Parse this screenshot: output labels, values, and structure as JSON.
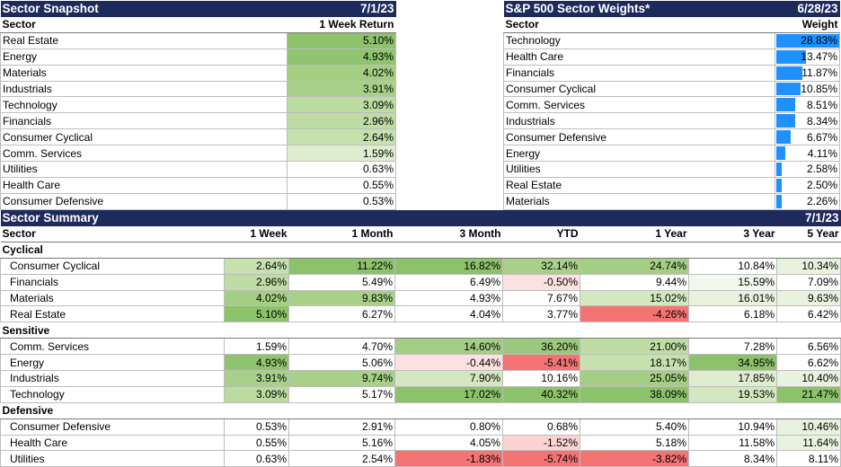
{
  "snapshot": {
    "title": "Sector Snapshot",
    "date": "7/1/23",
    "col_sector": "Sector",
    "col_return": "1 Week Return",
    "rows": [
      {
        "sector": "Real Estate",
        "value": "5.10%",
        "color": "#8cc26a"
      },
      {
        "sector": "Energy",
        "value": "4.93%",
        "color": "#91c46e"
      },
      {
        "sector": "Materials",
        "value": "4.02%",
        "color": "#a5ce85"
      },
      {
        "sector": "Industrials",
        "value": "3.91%",
        "color": "#a8d088"
      },
      {
        "sector": "Technology",
        "value": "3.09%",
        "color": "#bbdb9f"
      },
      {
        "sector": "Financials",
        "value": "2.96%",
        "color": "#bedca3"
      },
      {
        "sector": "Consumer Cyclical",
        "value": "2.64%",
        "color": "#c6e1ad"
      },
      {
        "sector": "Comm. Services",
        "value": "1.59%",
        "color": "#deedd0"
      },
      {
        "sector": "Utilities",
        "value": "0.63%",
        "color": "#ffffff"
      },
      {
        "sector": "Health Care",
        "value": "0.55%",
        "color": "#ffffff"
      },
      {
        "sector": "Consumer Defensive",
        "value": "0.53%",
        "color": "#ffffff"
      }
    ]
  },
  "weights": {
    "title": "S&P 500 Sector Weights*",
    "date": "6/28/23",
    "col_sector": "Sector",
    "col_weight": "Weight",
    "bar_color": "#1e90ff",
    "rows": [
      {
        "sector": "Technology",
        "value": "28.83%",
        "weight": 28.83
      },
      {
        "sector": "Health Care",
        "value": "13.47%",
        "weight": 13.47
      },
      {
        "sector": "Financials",
        "value": "11.87%",
        "weight": 11.87
      },
      {
        "sector": "Consumer Cyclical",
        "value": "10.85%",
        "weight": 10.85
      },
      {
        "sector": "Comm. Services",
        "value": "8.51%",
        "weight": 8.51
      },
      {
        "sector": "Industrials",
        "value": "8.34%",
        "weight": 8.34
      },
      {
        "sector": "Consumer Defensive",
        "value": "6.67%",
        "weight": 6.67
      },
      {
        "sector": "Energy",
        "value": "4.11%",
        "weight": 4.11
      },
      {
        "sector": "Utilities",
        "value": "2.58%",
        "weight": 2.58
      },
      {
        "sector": "Real Estate",
        "value": "2.50%",
        "weight": 2.5
      },
      {
        "sector": "Materials",
        "value": "2.26%",
        "weight": 2.26
      }
    ]
  },
  "summary": {
    "title": "Sector Summary",
    "date": "7/1/23",
    "columns": [
      "Sector",
      "1 Week",
      "1 Month",
      "3 Month",
      "YTD",
      "1 Year",
      "3 Year",
      "5 Year"
    ],
    "groups": [
      {
        "name": "Cyclical",
        "rows": [
          {
            "sector": "Consumer Cyclical",
            "cells": [
              {
                "v": "2.64%",
                "c": "#c6e1ad"
              },
              {
                "v": "11.22%",
                "c": "#8cc26a"
              },
              {
                "v": "16.82%",
                "c": "#8cc26a"
              },
              {
                "v": "32.14%",
                "c": "#a8d088"
              },
              {
                "v": "24.74%",
                "c": "#a5ce85"
              },
              {
                "v": "10.84%",
                "c": "#ffffff"
              },
              {
                "v": "10.34%",
                "c": "#e8f2df"
              }
            ]
          },
          {
            "sector": "Financials",
            "cells": [
              {
                "v": "2.96%",
                "c": "#bedca3"
              },
              {
                "v": "5.49%",
                "c": "#ffffff"
              },
              {
                "v": "6.49%",
                "c": "#ffffff"
              },
              {
                "v": "-0.50%",
                "c": "#fde0e0"
              },
              {
                "v": "9.44%",
                "c": "#ffffff"
              },
              {
                "v": "15.59%",
                "c": "#f3f8ee"
              },
              {
                "v": "7.09%",
                "c": "#ffffff"
              }
            ]
          },
          {
            "sector": "Materials",
            "cells": [
              {
                "v": "4.02%",
                "c": "#a5ce85"
              },
              {
                "v": "9.83%",
                "c": "#a8d088"
              },
              {
                "v": "4.93%",
                "c": "#ffffff"
              },
              {
                "v": "7.67%",
                "c": "#ffffff"
              },
              {
                "v": "15.02%",
                "c": "#d3e8c0"
              },
              {
                "v": "16.01%",
                "c": "#e8f2df"
              },
              {
                "v": "9.63%",
                "c": "#e8f2df"
              }
            ]
          },
          {
            "sector": "Real Estate",
            "cells": [
              {
                "v": "5.10%",
                "c": "#8cc26a"
              },
              {
                "v": "6.27%",
                "c": "#ffffff"
              },
              {
                "v": "4.04%",
                "c": "#ffffff"
              },
              {
                "v": "3.77%",
                "c": "#ffffff"
              },
              {
                "v": "-4.26%",
                "c": "#f47474"
              },
              {
                "v": "6.18%",
                "c": "#ffffff"
              },
              {
                "v": "6.42%",
                "c": "#ffffff"
              }
            ]
          }
        ]
      },
      {
        "name": "Sensitive",
        "rows": [
          {
            "sector": "Comm. Services",
            "cells": [
              {
                "v": "1.59%",
                "c": "#ffffff"
              },
              {
                "v": "4.70%",
                "c": "#ffffff"
              },
              {
                "v": "14.60%",
                "c": "#a5ce85"
              },
              {
                "v": "36.20%",
                "c": "#9bc97b"
              },
              {
                "v": "21.00%",
                "c": "#bedca3"
              },
              {
                "v": "7.28%",
                "c": "#ffffff"
              },
              {
                "v": "6.56%",
                "c": "#ffffff"
              }
            ]
          },
          {
            "sector": "Energy",
            "cells": [
              {
                "v": "4.93%",
                "c": "#91c46e"
              },
              {
                "v": "5.06%",
                "c": "#ffffff"
              },
              {
                "v": "-0.44%",
                "c": "#fde0e0"
              },
              {
                "v": "-5.41%",
                "c": "#f47474"
              },
              {
                "v": "18.17%",
                "c": "#c6e1ad"
              },
              {
                "v": "34.95%",
                "c": "#8cc26a"
              },
              {
                "v": "6.62%",
                "c": "#ffffff"
              }
            ]
          },
          {
            "sector": "Industrials",
            "cells": [
              {
                "v": "3.91%",
                "c": "#a8d088"
              },
              {
                "v": "9.74%",
                "c": "#a8d088"
              },
              {
                "v": "7.90%",
                "c": "#d3e8c0"
              },
              {
                "v": "10.16%",
                "c": "#ffffff"
              },
              {
                "v": "25.05%",
                "c": "#a5ce85"
              },
              {
                "v": "17.85%",
                "c": "#deedd0"
              },
              {
                "v": "10.40%",
                "c": "#e8f2df"
              }
            ]
          },
          {
            "sector": "Technology",
            "cells": [
              {
                "v": "3.09%",
                "c": "#bbdb9f"
              },
              {
                "v": "5.17%",
                "c": "#ffffff"
              },
              {
                "v": "17.02%",
                "c": "#8cc26a"
              },
              {
                "v": "40.32%",
                "c": "#8cc26a"
              },
              {
                "v": "38.09%",
                "c": "#8cc26a"
              },
              {
                "v": "19.53%",
                "c": "#d3e8c0"
              },
              {
                "v": "21.47%",
                "c": "#8cc26a"
              }
            ]
          }
        ]
      },
      {
        "name": "Defensive",
        "rows": [
          {
            "sector": "Consumer Defensive",
            "cells": [
              {
                "v": "0.53%",
                "c": "#ffffff"
              },
              {
                "v": "2.91%",
                "c": "#ffffff"
              },
              {
                "v": "0.80%",
                "c": "#ffffff"
              },
              {
                "v": "0.68%",
                "c": "#ffffff"
              },
              {
                "v": "5.40%",
                "c": "#ffffff"
              },
              {
                "v": "10.94%",
                "c": "#ffffff"
              },
              {
                "v": "10.46%",
                "c": "#e8f2df"
              }
            ]
          },
          {
            "sector": "Health Care",
            "cells": [
              {
                "v": "0.55%",
                "c": "#ffffff"
              },
              {
                "v": "5.16%",
                "c": "#ffffff"
              },
              {
                "v": "4.05%",
                "c": "#ffffff"
              },
              {
                "v": "-1.52%",
                "c": "#fbd3d3"
              },
              {
                "v": "5.18%",
                "c": "#ffffff"
              },
              {
                "v": "11.58%",
                "c": "#ffffff"
              },
              {
                "v": "11.64%",
                "c": "#e8f2df"
              }
            ]
          },
          {
            "sector": "Utilities",
            "cells": [
              {
                "v": "0.63%",
                "c": "#ffffff"
              },
              {
                "v": "2.54%",
                "c": "#ffffff"
              },
              {
                "v": "-1.83%",
                "c": "#f47474"
              },
              {
                "v": "-5.74%",
                "c": "#f47474"
              },
              {
                "v": "-3.82%",
                "c": "#f47474"
              },
              {
                "v": "8.34%",
                "c": "#ffffff"
              },
              {
                "v": "8.11%",
                "c": "#ffffff"
              }
            ]
          }
        ]
      }
    ]
  }
}
